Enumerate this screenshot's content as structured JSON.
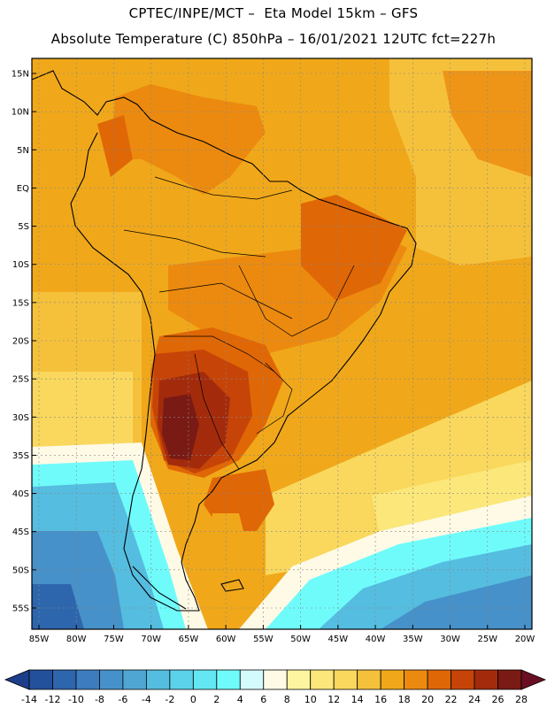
{
  "header": {
    "line1": "CPTEC/INPE/MCT –  Eta Model 15km – GFS",
    "line2": "Absolute Temperature (C) 850hPa – 16/01/2021 12UTC fct=227h"
  },
  "map": {
    "region": "South America",
    "lat_labels": [
      "15N",
      "10N",
      "5N",
      "EQ",
      "5S",
      "10S",
      "15S",
      "20S",
      "25S",
      "30S",
      "35S",
      "40S",
      "45S",
      "50S",
      "55S"
    ],
    "lon_labels": [
      "85W",
      "80W",
      "75W",
      "70W",
      "65W",
      "60W",
      "55W",
      "50W",
      "45W",
      "40W",
      "35W",
      "30W",
      "25W",
      "20W"
    ],
    "lat_range": [
      15,
      -55
    ],
    "lon_range": [
      -85,
      -20
    ]
  },
  "colorbar": {
    "ticks": [
      "-14",
      "-12",
      "-10",
      "-8",
      "-6",
      "-4",
      "-2",
      "0",
      "2",
      "4",
      "6",
      "8",
      "10",
      "12",
      "14",
      "16",
      "18",
      "20",
      "22",
      "24",
      "26",
      "28"
    ],
    "colors": [
      "#1d3e8a",
      "#23509b",
      "#2e66ad",
      "#3d7cbe",
      "#4691c9",
      "#4fa6d3",
      "#55bde0",
      "#5bd2ea",
      "#63e7f2",
      "#70fbfb",
      "#d4fbfc",
      "#fefae6",
      "#fdf5a0",
      "#fbe77a",
      "#f9d85d",
      "#f5c13b",
      "#f0a81a",
      "#ec8a0f",
      "#e06706",
      "#c64407",
      "#a32b0c",
      "#7a1a14",
      "#6a0f23"
    ]
  }
}
